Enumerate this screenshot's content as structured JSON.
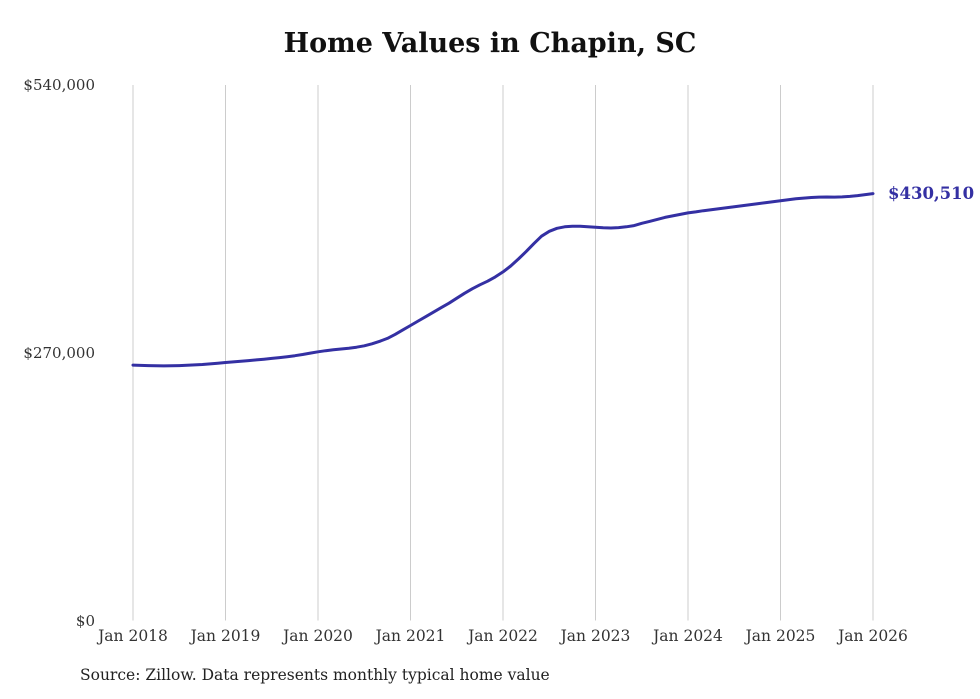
{
  "chart_data": {
    "type": "line",
    "title": "Home Values in Chapin, SC",
    "series_name": "Monthly typical home value",
    "end_label": "$430,510",
    "source_note": "Source: Zillow. Data represents monthly typical home value",
    "line_color": "#3430a3",
    "grid_color": "#cccccc",
    "grid": "vertical-only",
    "legend": "none",
    "ylim": [
      0,
      540000
    ],
    "y_ticks": [
      0,
      270000,
      540000
    ],
    "y_tick_labels": [
      "$0",
      "$270,000",
      "$540,000"
    ],
    "x_tick_labels": [
      "Jan 2018",
      "Jan 2019",
      "Jan 2020",
      "Jan 2021",
      "Jan 2022",
      "Jan 2023",
      "Jan 2024",
      "Jan 2025",
      "Jan 2026"
    ],
    "x": [
      "Jan 2018",
      "Feb 2018",
      "Mar 2018",
      "Apr 2018",
      "May 2018",
      "Jun 2018",
      "Jul 2018",
      "Aug 2018",
      "Sep 2018",
      "Oct 2018",
      "Nov 2018",
      "Dec 2018",
      "Jan 2019",
      "Feb 2019",
      "Mar 2019",
      "Apr 2019",
      "May 2019",
      "Jun 2019",
      "Jul 2019",
      "Aug 2019",
      "Sep 2019",
      "Oct 2019",
      "Nov 2019",
      "Dec 2019",
      "Jan 2020",
      "Feb 2020",
      "Mar 2020",
      "Apr 2020",
      "May 2020",
      "Jun 2020",
      "Jul 2020",
      "Aug 2020",
      "Sep 2020",
      "Oct 2020",
      "Nov 2020",
      "Dec 2020",
      "Jan 2021",
      "Feb 2021",
      "Mar 2021",
      "Apr 2021",
      "May 2021",
      "Jun 2021",
      "Jul 2021",
      "Aug 2021",
      "Sep 2021",
      "Oct 2021",
      "Nov 2021",
      "Dec 2021",
      "Jan 2022",
      "Feb 2022",
      "Mar 2022",
      "Apr 2022",
      "May 2022",
      "Jun 2022",
      "Jul 2022",
      "Aug 2022",
      "Sep 2022",
      "Oct 2022",
      "Nov 2022",
      "Dec 2022",
      "Jan 2023",
      "Feb 2023",
      "Mar 2023",
      "Apr 2023",
      "May 2023",
      "Jun 2023",
      "Jul 2023",
      "Aug 2023",
      "Sep 2023",
      "Oct 2023",
      "Nov 2023",
      "Dec 2023",
      "Jan 2024",
      "Feb 2024",
      "Mar 2024",
      "Apr 2024",
      "May 2024",
      "Jun 2024",
      "Jul 2024",
      "Aug 2024",
      "Sep 2024",
      "Oct 2024",
      "Nov 2024",
      "Dec 2024",
      "Jan 2025",
      "Feb 2025",
      "Mar 2025",
      "Apr 2025",
      "May 2025",
      "Jun 2025",
      "Jul 2025",
      "Aug 2025",
      "Sep 2025",
      "Oct 2025",
      "Nov 2025",
      "Dec 2025",
      "Jan 2026"
    ],
    "values": [
      257500,
      257200,
      257000,
      256800,
      256700,
      256800,
      257000,
      257300,
      257700,
      258200,
      258800,
      259500,
      260200,
      260800,
      261400,
      262100,
      262800,
      263500,
      264300,
      265100,
      266000,
      267000,
      268200,
      269600,
      271000,
      272100,
      273000,
      273800,
      274600,
      275600,
      277000,
      279000,
      281500,
      284500,
      288500,
      293000,
      297500,
      302000,
      306500,
      311000,
      315500,
      320000,
      325000,
      330000,
      334500,
      338500,
      342200,
      346500,
      351500,
      357500,
      364500,
      372000,
      380000,
      387500,
      392500,
      395500,
      397000,
      397500,
      397500,
      397000,
      396500,
      396000,
      395800,
      396200,
      397000,
      398200,
      400500,
      402500,
      404500,
      406500,
      408000,
      409500,
      411000,
      412000,
      413200,
      414300,
      415300,
      416300,
      417300,
      418300,
      419300,
      420300,
      421300,
      422300,
      423300,
      424300,
      425200,
      426000,
      426600,
      427000,
      427100,
      427000,
      427200,
      427700,
      428500,
      429500,
      430510
    ]
  }
}
